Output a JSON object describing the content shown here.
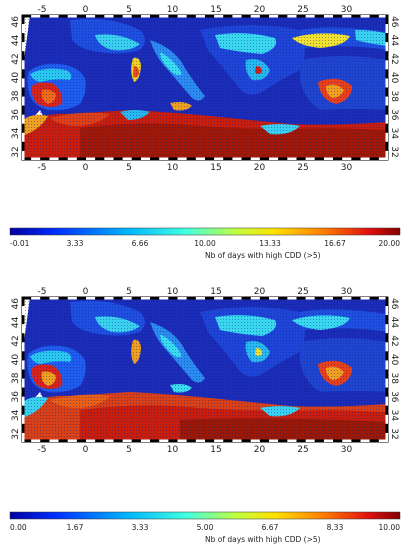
{
  "panels": [
    {
      "name": "top",
      "lon_ticks": [
        "-5",
        "0",
        "5",
        "10",
        "15",
        "20",
        "25",
        "30"
      ],
      "lat_ticks": [
        "32",
        "34",
        "36",
        "38",
        "40",
        "42",
        "44",
        "46"
      ],
      "colorbar": {
        "tick_labels": [
          "-0.01",
          "3.33",
          "6.66",
          "10.00",
          "13.33",
          "16.67",
          "20.00"
        ],
        "min": -0.01,
        "max": 20.0,
        "title": "Nb of days with high CDD (>5)"
      }
    },
    {
      "name": "bottom",
      "lon_ticks": [
        "-5",
        "0",
        "5",
        "10",
        "15",
        "20",
        "25",
        "30"
      ],
      "lat_ticks": [
        "32",
        "34",
        "36",
        "38",
        "40",
        "42",
        "44",
        "46"
      ],
      "colorbar": {
        "tick_labels": [
          "0.00",
          "1.67",
          "3.33",
          "5.00",
          "6.67",
          "8.33",
          "10.00"
        ],
        "min": 0.0,
        "max": 10.0,
        "title": "Nb of days with high CDD (>5)"
      }
    }
  ],
  "colors": {
    "sea": "#1a2aa0",
    "low": "#1f3be0",
    "cyan": "#3fd8f0",
    "yellow": "#f5e23a",
    "orange": "#f07a20",
    "red": "#c81e10",
    "darkred": "#8a1008"
  }
}
